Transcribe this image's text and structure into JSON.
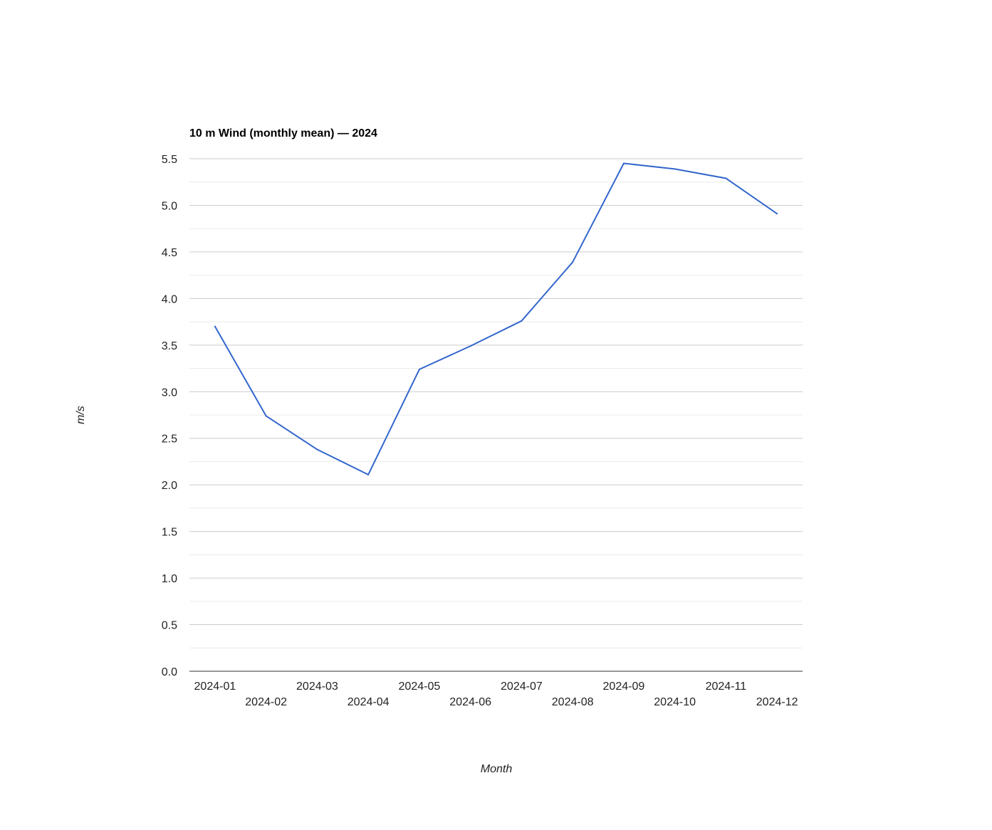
{
  "chart_data": {
    "type": "line",
    "title": "10 m Wind (monthly mean) — 2024",
    "xlabel": "Month",
    "ylabel": "m/s",
    "categories": [
      "2024-01",
      "2024-02",
      "2024-03",
      "2024-04",
      "2024-05",
      "2024-06",
      "2024-07",
      "2024-08",
      "2024-09",
      "2024-10",
      "2024-11",
      "2024-12"
    ],
    "series": [
      {
        "name": "10 m Wind",
        "values": [
          3.7,
          2.74,
          2.38,
          2.11,
          3.24,
          3.49,
          3.76,
          4.39,
          5.45,
          5.39,
          5.29,
          4.91
        ]
      }
    ],
    "ylim": [
      0,
      5.5
    ],
    "yticks": [
      "0.0",
      "0.5",
      "1.0",
      "1.5",
      "2.0",
      "2.5",
      "3.0",
      "3.5",
      "4.0",
      "4.5",
      "5.0",
      "5.5"
    ],
    "grid": true,
    "legend": "none",
    "colors": {
      "line": "#3366cc",
      "gridline": "#cccccc",
      "minor_gridline": "#ebebeb",
      "baseline": "#333333"
    }
  }
}
